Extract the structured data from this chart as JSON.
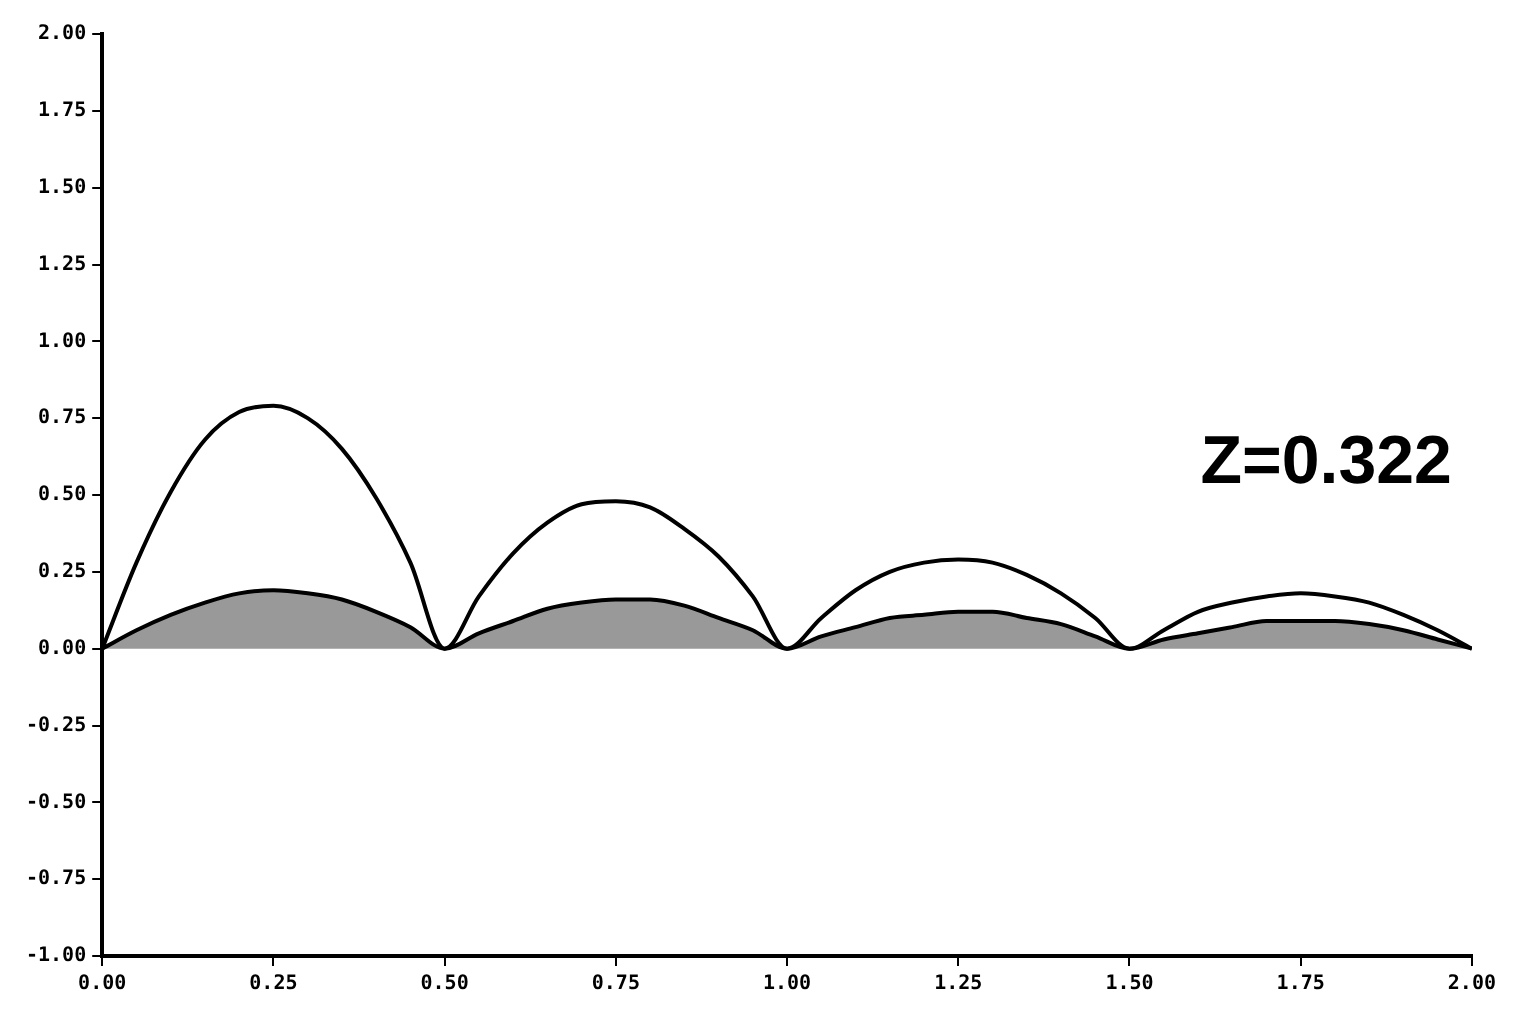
{
  "chart_data": {
    "type": "line",
    "x": [
      0,
      0.05,
      0.1,
      0.15,
      0.2,
      0.25,
      0.3,
      0.35,
      0.4,
      0.45,
      0.5,
      0.55,
      0.6,
      0.65,
      0.7,
      0.75,
      0.8,
      0.85,
      0.9,
      0.95,
      1,
      1.05,
      1.1,
      1.15,
      1.2,
      1.25,
      1.3,
      1.35,
      1.4,
      1.45,
      1.5,
      1.55,
      1.6,
      1.65,
      1.7,
      1.75,
      1.8,
      1.85,
      1.9,
      1.95,
      2
    ],
    "series": [
      {
        "type": "line",
        "color": "#000000",
        "values": [
          0,
          0.28,
          0.51,
          0.68,
          0.77,
          0.79,
          0.75,
          0.65,
          0.49,
          0.28,
          0,
          0.17,
          0.31,
          0.41,
          0.47,
          0.48,
          0.46,
          0.39,
          0.3,
          0.17,
          0,
          0.1,
          0.19,
          0.25,
          0.28,
          0.29,
          0.28,
          0.24,
          0.18,
          0.1,
          0,
          0.06,
          0.12,
          0.15,
          0.17,
          0.18,
          0.17,
          0.15,
          0.11,
          0.06,
          0
        ]
      },
      {
        "type": "area",
        "color": "#000000",
        "values": [
          0,
          0.06,
          0.11,
          0.15,
          0.18,
          0.19,
          0.18,
          0.16,
          0.12,
          0.07,
          0,
          0.05,
          0.09,
          0.13,
          0.15,
          0.16,
          0.16,
          0.14,
          0.1,
          0.06,
          0,
          0.04,
          0.07,
          0.1,
          0.11,
          0.12,
          0.12,
          0.1,
          0.08,
          0.04,
          0,
          0.03,
          0.05,
          0.07,
          0.09,
          0.09,
          0.09,
          0.08,
          0.06,
          0.03,
          0
        ]
      }
    ],
    "xlim": [
      0,
      2
    ],
    "ylim": [
      -1,
      2
    ],
    "xticks": [
      {
        "value": 0,
        "label": "0.00"
      },
      {
        "value": 0.25,
        "label": "0.25"
      },
      {
        "value": 0.5,
        "label": "0.50"
      },
      {
        "value": 0.75,
        "label": "0.75"
      },
      {
        "value": 1,
        "label": "1.00"
      },
      {
        "value": 1.25,
        "label": "1.25"
      },
      {
        "value": 1.5,
        "label": "1.50"
      },
      {
        "value": 1.75,
        "label": "1.75"
      },
      {
        "value": 2,
        "label": "2.00"
      }
    ],
    "yticks": [
      {
        "value": -1,
        "label": "-1.00"
      },
      {
        "value": -0.75,
        "label": "-0.75"
      },
      {
        "value": -0.5,
        "label": "-0.50"
      },
      {
        "value": -0.25,
        "label": "-0.25"
      },
      {
        "value": 0,
        "label": "0.00"
      },
      {
        "value": 0.25,
        "label": "0.25"
      },
      {
        "value": 0.5,
        "label": "0.50"
      },
      {
        "value": 0.75,
        "label": "0.75"
      },
      {
        "value": 1,
        "label": "1.00"
      },
      {
        "value": 1.25,
        "label": "1.25"
      },
      {
        "value": 1.5,
        "label": "1.50"
      },
      {
        "value": 1.75,
        "label": "1.75"
      },
      {
        "value": 2,
        "label": "2.00"
      }
    ],
    "annotations": [
      "Z=0.322"
    ],
    "grid": false,
    "legend": false,
    "marker": "none",
    "line_style": "solid"
  }
}
